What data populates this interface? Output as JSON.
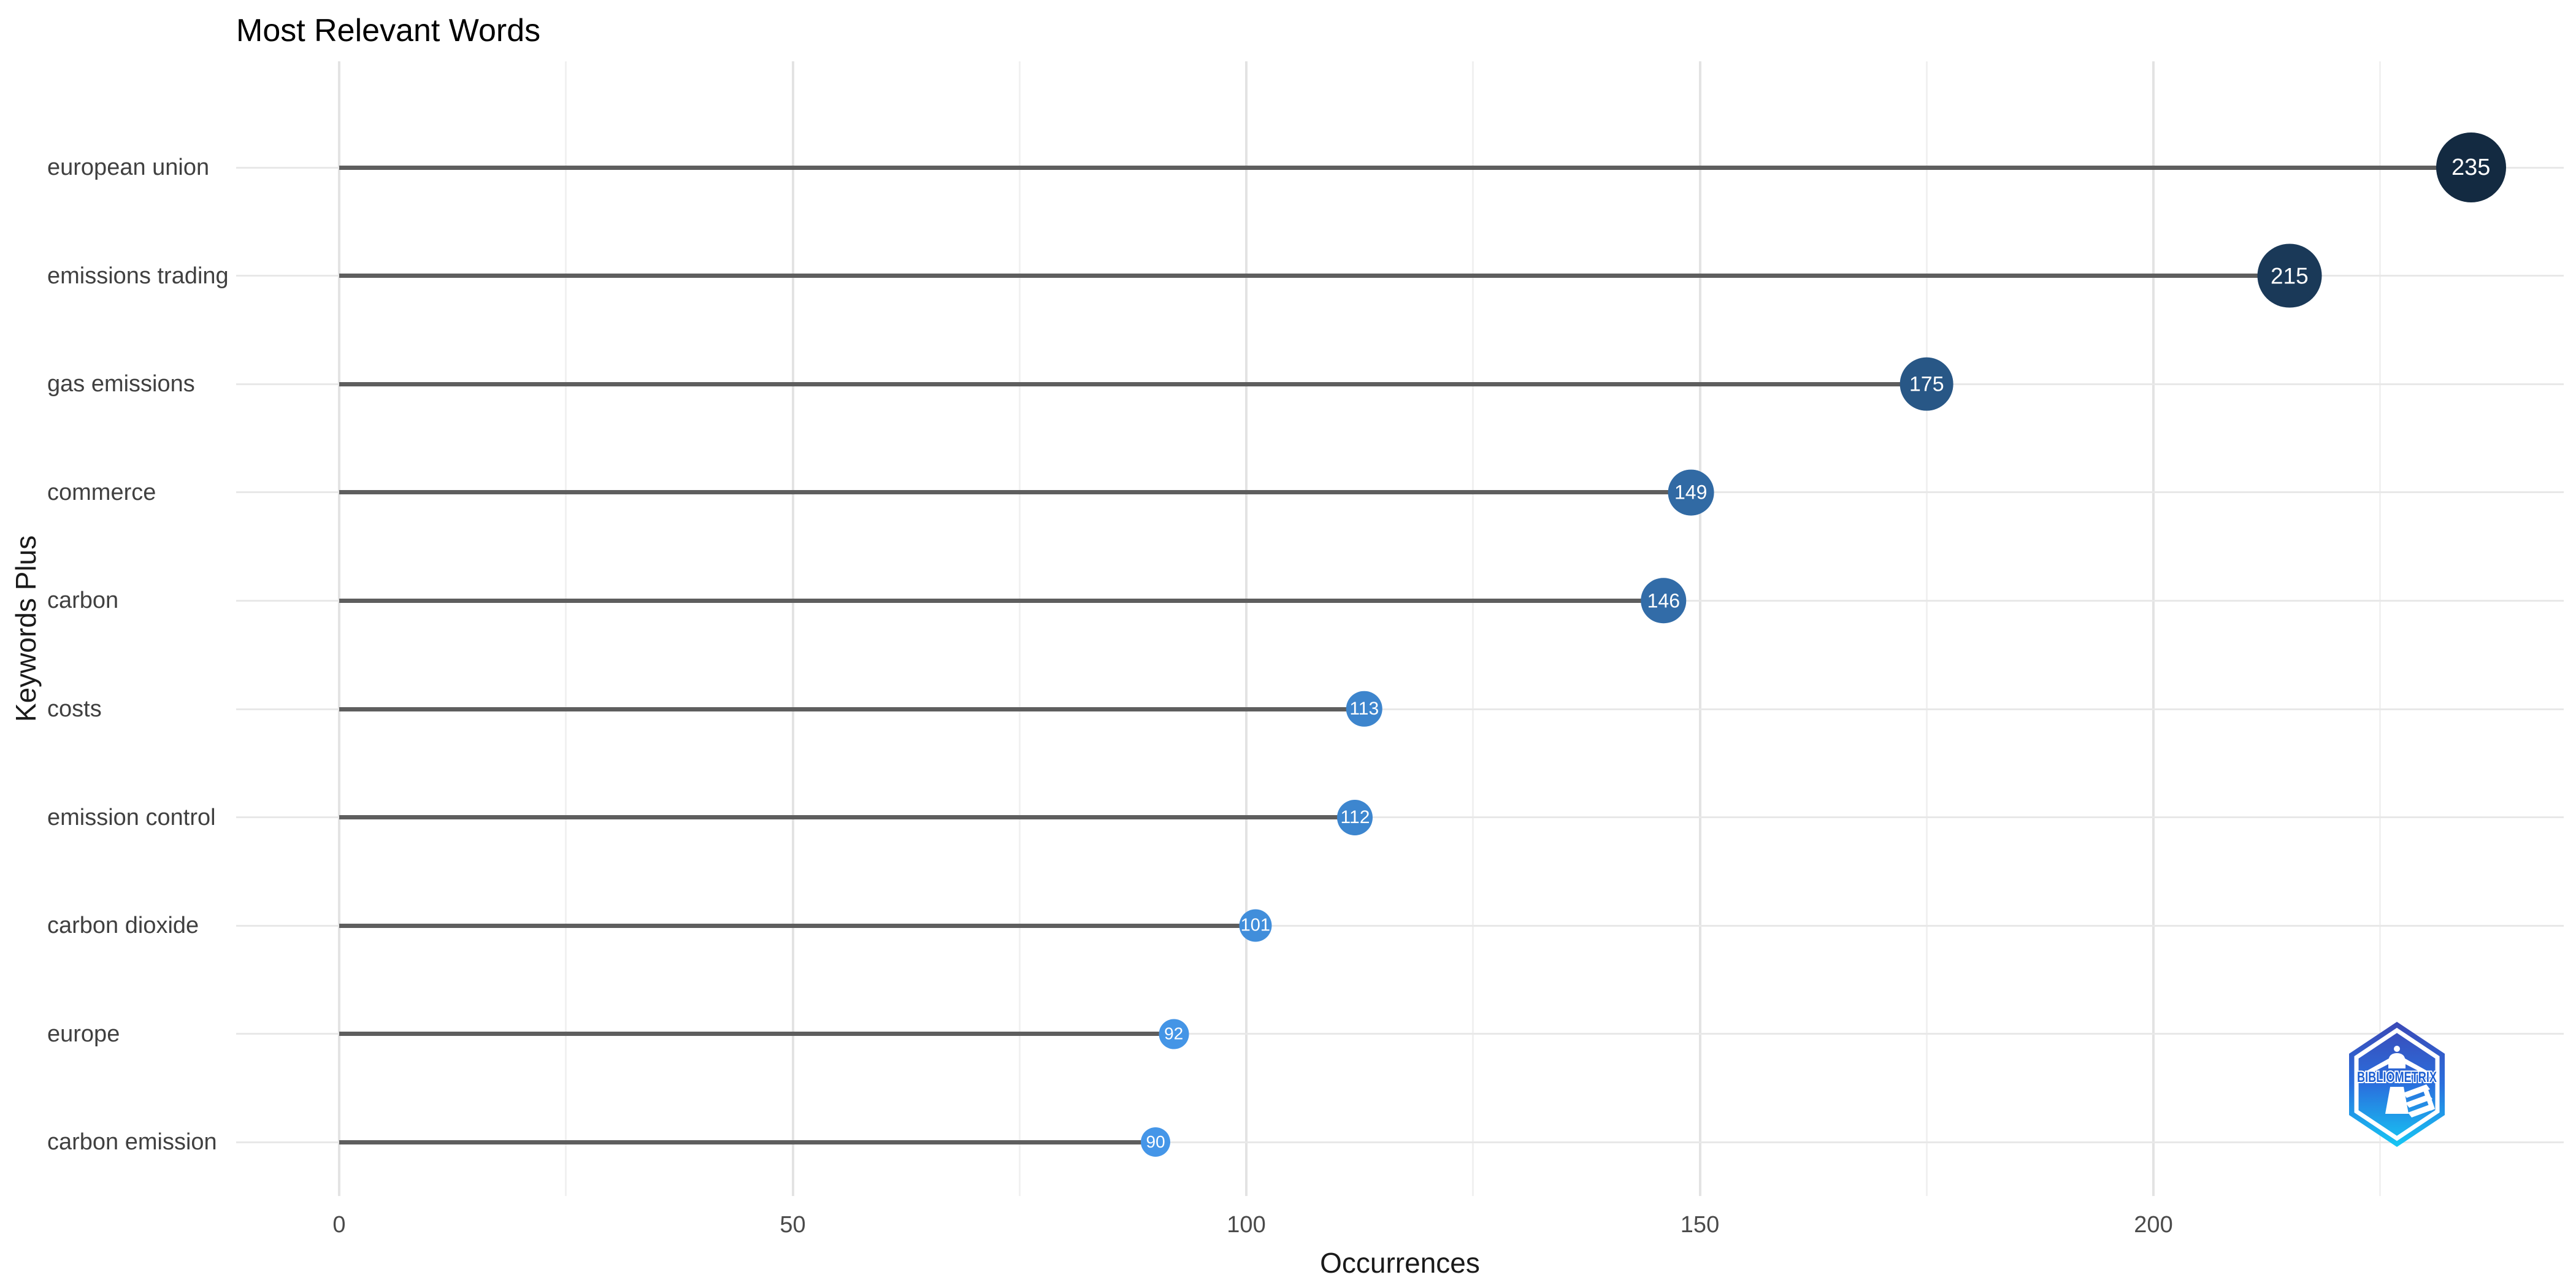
{
  "chart_data": {
    "type": "lollipop",
    "orientation": "horizontal",
    "title": "Most Relevant Words",
    "xlabel": "Occurrences",
    "ylabel": "Keywords Plus",
    "categories": [
      "european union",
      "emissions trading",
      "gas emissions",
      "commerce",
      "carbon",
      "costs",
      "emission control",
      "carbon dioxide",
      "europe",
      "carbon emission"
    ],
    "values": [
      235,
      215,
      175,
      149,
      146,
      113,
      112,
      101,
      92,
      90
    ],
    "point_colors": [
      "#132a41",
      "#1a3958",
      "#285786",
      "#316aa4",
      "#326ca8",
      "#3d85cd",
      "#3d86cf",
      "#418edb",
      "#4495e6",
      "#4596e8"
    ],
    "x_ticks": [
      {
        "value": 0,
        "label": "0"
      },
      {
        "value": 50,
        "label": "50"
      },
      {
        "value": 100,
        "label": "100"
      },
      {
        "value": 150,
        "label": "150"
      },
      {
        "value": 200,
        "label": "200"
      }
    ],
    "x_minor_tick_values": [
      25,
      75,
      125,
      175,
      225
    ],
    "xlim": [
      0,
      235
    ],
    "grid": {
      "vertical_major": true,
      "vertical_minor": true,
      "horizontal_row_lines": true
    },
    "legend_position": "none",
    "color_scale": {
      "low_value": 90,
      "low_color": "#4596e8",
      "high_value": 235,
      "high_color": "#132a41"
    }
  },
  "branding": {
    "logo_text": "BIBLIOMETRIX"
  },
  "theme": {
    "background": "#ffffff",
    "grid_major": "#e3e3e3",
    "grid_minor": "#f1f1f1",
    "row_line": "#e8e8e8",
    "stem_color": "#5e5e5e",
    "axis_text": "#4a4a4a",
    "title_color": "#000000",
    "dot_label_color": "#ffffff",
    "logo_top": "#3b49b6",
    "logo_mid": "#2a6fdd",
    "logo_bottom": "#16c8f4",
    "logo_letter_blue": "#1d5fd2"
  }
}
